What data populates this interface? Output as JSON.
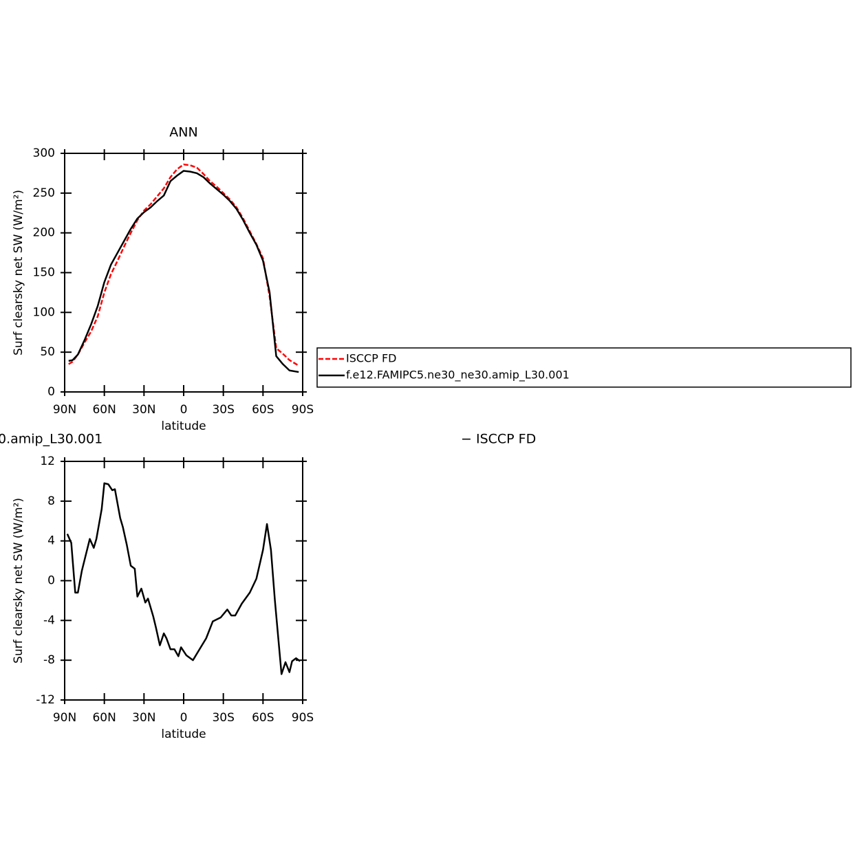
{
  "chart_data": [
    {
      "type": "line",
      "title": "ANN",
      "xlabel": "latitude",
      "ylabel": "Surf clearsky net SW (W/m²)",
      "x": [
        87,
        84,
        80,
        75,
        70,
        65,
        60,
        55,
        50,
        45,
        40,
        35,
        30,
        25,
        20,
        15,
        10,
        5,
        0,
        -5,
        -10,
        -15,
        -20,
        -25,
        -30,
        -35,
        -40,
        -45,
        -50,
        -55,
        -60,
        -65,
        -70,
        -75,
        -80,
        -87
      ],
      "series": [
        {
          "name": "ISCCP FD",
          "color": "#ff0000",
          "dashed": true,
          "values": [
            35,
            38,
            47,
            62,
            76,
            95,
            125,
            148,
            165,
            183,
            200,
            216,
            228,
            236,
            246,
            256,
            270,
            280,
            286,
            285,
            282,
            274,
            265,
            258,
            250,
            242,
            232,
            218,
            202,
            186,
            168,
            120,
            55,
            48,
            40,
            33
          ]
        },
        {
          "name": "f.e12.FAMIPC5.ne30_ne30.amip_L30.001",
          "color": "#000000",
          "dashed": false,
          "values": [
            39,
            40,
            47,
            65,
            85,
            108,
            138,
            160,
            175,
            190,
            205,
            218,
            226,
            232,
            240,
            247,
            265,
            272,
            278,
            277,
            275,
            270,
            262,
            255,
            248,
            240,
            230,
            216,
            200,
            185,
            165,
            125,
            45,
            35,
            27,
            25
          ]
        }
      ],
      "xlim": [
        90,
        -90
      ],
      "xticks": [
        {
          "value": 90,
          "label": "90N"
        },
        {
          "value": 60,
          "label": "60N"
        },
        {
          "value": 30,
          "label": "30N"
        },
        0,
        {
          "value": -30,
          "label": "30S"
        },
        {
          "value": -60,
          "label": "60S"
        },
        {
          "value": -90,
          "label": "90S"
        }
      ],
      "ylim": [
        0,
        300
      ],
      "yticks": [
        0,
        50,
        100,
        150,
        200,
        250,
        300
      ],
      "legend": "right"
    },
    {
      "type": "line",
      "title_fragments": [
        "0.amip_L30.001",
        "− ISCCP FD"
      ],
      "xlabel": "latitude",
      "ylabel": "Surf clearsky net SW (W/m²)",
      "x": [
        88,
        85,
        82,
        80,
        77,
        71,
        68,
        66,
        62,
        60,
        57,
        54,
        52,
        48,
        46,
        43,
        40,
        37,
        35,
        32,
        29,
        27,
        23,
        21,
        18,
        15,
        13,
        10,
        7,
        4,
        2,
        -2,
        -7,
        -12,
        -17,
        -22,
        -28,
        -33,
        -36,
        -39,
        -44,
        -50,
        -55,
        -60,
        -63,
        -66,
        -69,
        -74,
        -77,
        -80,
        -82,
        -85,
        -88
      ],
      "series": [
        {
          "name": "f.e12.FAMIPC5.ne30_ne30.amip_L30.001",
          "color": "#000000",
          "dashed": false,
          "values": [
            4.7,
            3.8,
            -1.2,
            -1.2,
            1.0,
            4.2,
            3.3,
            4.2,
            7.2,
            9.8,
            9.7,
            9.1,
            9.2,
            6.3,
            5.4,
            3.6,
            1.5,
            1.2,
            -1.6,
            -0.8,
            -2.2,
            -1.8,
            -3.6,
            -4.7,
            -6.5,
            -5.3,
            -5.8,
            -6.9,
            -6.9,
            -7.6,
            -6.7,
            -7.5,
            -8.0,
            -6.9,
            -5.8,
            -4.1,
            -3.7,
            -2.9,
            -3.5,
            -3.5,
            -2.3,
            -1.2,
            0.2,
            3.1,
            5.7,
            3.1,
            -2.0,
            -9.4,
            -8.2,
            -9.2,
            -8.1,
            -7.8,
            -8.1
          ]
        }
      ],
      "xlim": [
        90,
        -90
      ],
      "xticks": [
        {
          "value": 90,
          "label": "90N"
        },
        {
          "value": 60,
          "label": "60N"
        },
        {
          "value": 30,
          "label": "30N"
        },
        0,
        {
          "value": -30,
          "label": "30S"
        },
        {
          "value": -60,
          "label": "60S"
        },
        {
          "value": -90,
          "label": "90S"
        }
      ],
      "ylim": [
        -12,
        12
      ],
      "yticks": [
        -12,
        -8,
        -4,
        0,
        4,
        8,
        12
      ],
      "legend": "none"
    }
  ]
}
